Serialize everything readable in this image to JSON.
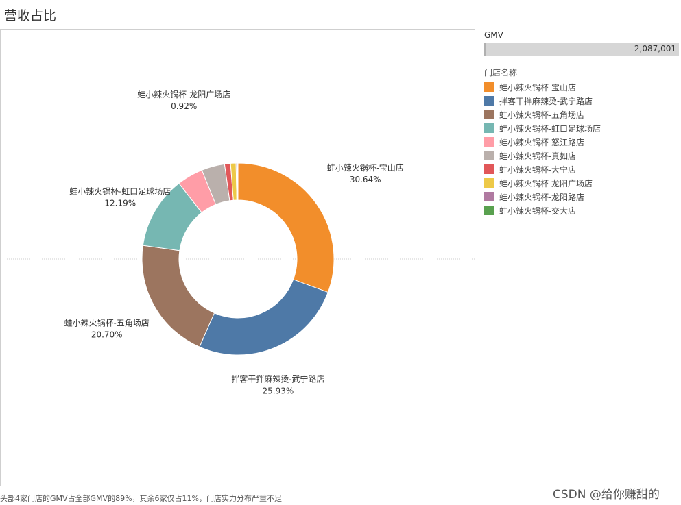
{
  "page_title": "营收占比",
  "footnote": "头部4家门店的GMV占全部GMV的89%，其余6家仅占11%，门店实力分布严重不足",
  "watermark": "CSDN @给你赚甜的",
  "gmv_legend": {
    "title": "GMV",
    "value": "2,087,001"
  },
  "legend_title": "门店名称",
  "chart_data": {
    "type": "pie",
    "donut": true,
    "title": "营收占比",
    "series": [
      {
        "name": "蛙小辣火锅杯-宝山店",
        "value": 30.64,
        "label": "30.64%",
        "color": "#F28E2B",
        "show_label": true
      },
      {
        "name": "拌客干拌麻辣烫-武宁路店",
        "value": 25.93,
        "label": "25.93%",
        "color": "#4E79A7",
        "show_label": true
      },
      {
        "name": "蛙小辣火锅杯-五角场店",
        "value": 20.7,
        "label": "20.70%",
        "color": "#9C755F",
        "show_label": true
      },
      {
        "name": "蛙小辣火锅杯-虹口足球场店",
        "value": 12.19,
        "label": "12.19%",
        "color": "#76B7B2",
        "show_label": true
      },
      {
        "name": "蛙小辣火锅杯-怒江路店",
        "value": 4.4,
        "color": "#FF9DA7",
        "show_label": false
      },
      {
        "name": "蛙小辣火锅杯-真如店",
        "value": 3.9,
        "color": "#BAB0AC",
        "show_label": false
      },
      {
        "name": "蛙小辣火锅杯-大宁店",
        "value": 1.0,
        "color": "#E15759",
        "show_label": false
      },
      {
        "name": "蛙小辣火锅杯-龙阳广场店",
        "value": 0.92,
        "label": "0.92%",
        "color": "#EDC948",
        "show_label": true
      },
      {
        "name": "蛙小辣火锅杯-龙阳路店",
        "value": 0.2,
        "color": "#B07AA1",
        "show_label": false
      },
      {
        "name": "蛙小辣火锅杯-交大店",
        "value": 0.12,
        "color": "#59A14F",
        "show_label": false
      }
    ]
  }
}
